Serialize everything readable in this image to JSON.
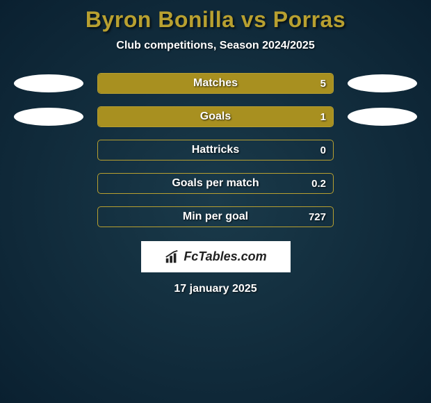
{
  "title": "Byron Bonilla vs Porras",
  "subtitle": "Club competitions, Season 2024/2025",
  "date": "17 january 2025",
  "logo_text": "FcTables.com",
  "colors": {
    "accent": "#b8a030",
    "bar_fill": "#a89020",
    "bg_center": "#1a3a4a",
    "bg_edge": "#0a2030",
    "ellipse": "#ffffff"
  },
  "stats": [
    {
      "label": "Matches",
      "value": "5",
      "fill_pct": 100,
      "show_ellipses": true
    },
    {
      "label": "Goals",
      "value": "1",
      "fill_pct": 100,
      "show_ellipses": true
    },
    {
      "label": "Hattricks",
      "value": "0",
      "fill_pct": 0,
      "show_ellipses": false
    },
    {
      "label": "Goals per match",
      "value": "0.2",
      "fill_pct": 0,
      "show_ellipses": false
    },
    {
      "label": "Min per goal",
      "value": "727",
      "fill_pct": 0,
      "show_ellipses": false
    }
  ]
}
